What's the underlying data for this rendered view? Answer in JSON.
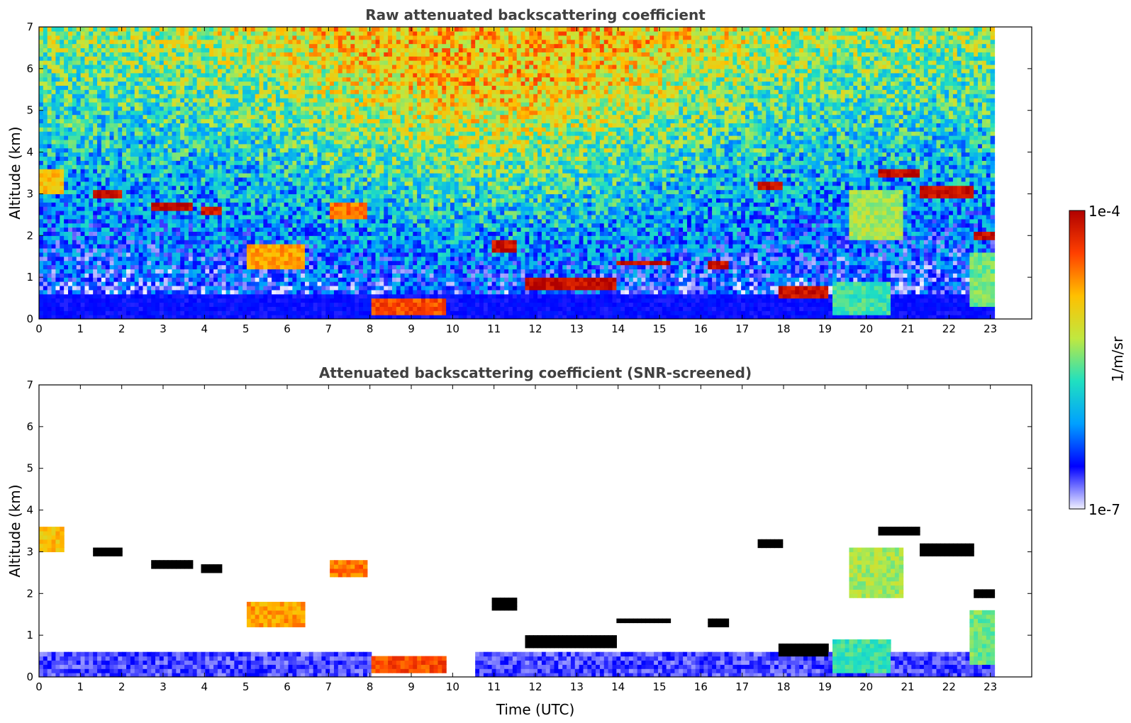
{
  "chart_data": [
    {
      "type": "heatmap",
      "title": "Raw attenuated backscattering coefficient",
      "xlabel": "",
      "ylabel": "Altitude (km)",
      "xlim": [
        0,
        24
      ],
      "ylim": [
        0,
        7
      ],
      "xticks": [
        "0",
        "1",
        "2",
        "3",
        "4",
        "5",
        "6",
        "7",
        "8",
        "9",
        "10",
        "11",
        "12",
        "13",
        "14",
        "15",
        "16",
        "17",
        "18",
        "19",
        "20",
        "21",
        "22",
        "23"
      ],
      "yticks": [
        "0",
        "1",
        "2",
        "3",
        "4",
        "5",
        "6",
        "7"
      ],
      "data_end_time": 23.1,
      "screened": false,
      "features": [
        {
          "t0": 0.0,
          "t1": 0.6,
          "alt": 3.3,
          "thick": 0.6,
          "level": 0.7
        },
        {
          "t0": 1.3,
          "t1": 2.0,
          "alt": 3.0,
          "thick": 0.25,
          "level": 0.95
        },
        {
          "t0": 2.7,
          "t1": 3.7,
          "alt": 2.75,
          "thick": 0.2,
          "level": 0.98
        },
        {
          "t0": 3.9,
          "t1": 4.4,
          "alt": 2.6,
          "thick": 0.25,
          "level": 0.95
        },
        {
          "t0": 5.0,
          "t1": 6.4,
          "alt": 1.5,
          "thick": 0.55,
          "level": 0.75
        },
        {
          "t0": 7.0,
          "t1": 7.9,
          "alt": 2.6,
          "thick": 0.4,
          "level": 0.8
        },
        {
          "t0": 8.0,
          "t1": 9.8,
          "alt": 0.3,
          "thick": 0.45,
          "level": 0.85
        },
        {
          "t0": 10.9,
          "t1": 11.6,
          "alt": 1.8,
          "thick": 0.3,
          "level": 0.95
        },
        {
          "t0": 11.8,
          "t1": 14.0,
          "alt": 0.85,
          "thick": 0.25,
          "level": 0.97
        },
        {
          "t0": 14.0,
          "t1": 15.3,
          "alt": 1.35,
          "thick": 0.2,
          "level": 0.97
        },
        {
          "t0": 16.2,
          "t1": 16.7,
          "alt": 1.3,
          "thick": 0.15,
          "level": 0.95
        },
        {
          "t0": 17.4,
          "t1": 18.0,
          "alt": 3.2,
          "thick": 0.25,
          "level": 0.97
        },
        {
          "t0": 17.9,
          "t1": 19.1,
          "alt": 0.7,
          "thick": 0.3,
          "level": 0.96
        },
        {
          "t0": 19.6,
          "t1": 20.9,
          "alt": 2.5,
          "thick": 1.2,
          "level": 0.55
        },
        {
          "t0": 20.3,
          "t1": 21.3,
          "alt": 3.55,
          "thick": 0.2,
          "level": 0.98
        },
        {
          "t0": 21.3,
          "t1": 22.6,
          "alt": 3.05,
          "thick": 0.25,
          "level": 0.97
        },
        {
          "t0": 22.6,
          "t1": 23.1,
          "alt": 2.0,
          "thick": 0.25,
          "level": 0.97
        },
        {
          "t0": 22.5,
          "t1": 23.1,
          "alt": 1.0,
          "thick": 1.3,
          "level": 0.5
        },
        {
          "t0": 19.2,
          "t1": 20.6,
          "alt": 0.5,
          "thick": 0.8,
          "level": 0.45
        }
      ]
    },
    {
      "type": "heatmap",
      "title": "Attenuated backscattering coefficient (SNR-screened)",
      "xlabel": "Time (UTC)",
      "ylabel": "Altitude (km)",
      "xlim": [
        0,
        24
      ],
      "ylim": [
        0,
        7
      ],
      "xticks": [
        "0",
        "1",
        "2",
        "3",
        "4",
        "5",
        "6",
        "7",
        "8",
        "9",
        "10",
        "11",
        "12",
        "13",
        "14",
        "15",
        "16",
        "17",
        "18",
        "19",
        "20",
        "21",
        "22",
        "23"
      ],
      "yticks": [
        "0",
        "1",
        "2",
        "3",
        "4",
        "5",
        "6",
        "7"
      ],
      "data_end_time": 23.1,
      "screened": true,
      "features": [
        {
          "t0": 0.0,
          "t1": 0.6,
          "alt": 3.3,
          "thick": 0.6,
          "level": 0.7
        },
        {
          "t0": 1.3,
          "t1": 2.0,
          "alt": 3.0,
          "thick": 0.25,
          "level": 1.0
        },
        {
          "t0": 2.7,
          "t1": 3.7,
          "alt": 2.75,
          "thick": 0.2,
          "level": 1.0
        },
        {
          "t0": 3.9,
          "t1": 4.4,
          "alt": 2.6,
          "thick": 0.25,
          "level": 1.0
        },
        {
          "t0": 5.0,
          "t1": 6.4,
          "alt": 1.5,
          "thick": 0.55,
          "level": 0.75
        },
        {
          "t0": 7.0,
          "t1": 7.9,
          "alt": 2.6,
          "thick": 0.4,
          "level": 0.8
        },
        {
          "t0": 8.0,
          "t1": 9.8,
          "alt": 0.3,
          "thick": 0.45,
          "level": 0.85
        },
        {
          "t0": 10.9,
          "t1": 11.6,
          "alt": 1.8,
          "thick": 0.3,
          "level": 1.0
        },
        {
          "t0": 11.8,
          "t1": 14.0,
          "alt": 0.85,
          "thick": 0.25,
          "level": 1.0
        },
        {
          "t0": 14.0,
          "t1": 15.3,
          "alt": 1.35,
          "thick": 0.2,
          "level": 1.0
        },
        {
          "t0": 16.2,
          "t1": 16.7,
          "alt": 1.3,
          "thick": 0.15,
          "level": 1.0
        },
        {
          "t0": 17.4,
          "t1": 18.0,
          "alt": 3.2,
          "thick": 0.25,
          "level": 1.0
        },
        {
          "t0": 17.9,
          "t1": 19.1,
          "alt": 0.7,
          "thick": 0.3,
          "level": 1.0
        },
        {
          "t0": 19.6,
          "t1": 20.9,
          "alt": 2.5,
          "thick": 1.2,
          "level": 0.55
        },
        {
          "t0": 20.3,
          "t1": 21.3,
          "alt": 3.55,
          "thick": 0.2,
          "level": 1.0
        },
        {
          "t0": 21.3,
          "t1": 22.6,
          "alt": 3.05,
          "thick": 0.25,
          "level": 1.0
        },
        {
          "t0": 22.6,
          "t1": 23.1,
          "alt": 2.0,
          "thick": 0.25,
          "level": 1.0
        },
        {
          "t0": 22.5,
          "t1": 23.1,
          "alt": 1.0,
          "thick": 1.3,
          "level": 0.5
        },
        {
          "t0": 19.2,
          "t1": 20.6,
          "alt": 0.5,
          "thick": 0.8,
          "level": 0.45
        }
      ]
    }
  ],
  "colorbar": {
    "label": "1/m/sr",
    "min_label": "1e-7",
    "max_label": "1e-4",
    "colormap": "jet",
    "colors": [
      "#f0f0ff",
      "#0000ff",
      "#00a0ff",
      "#20e0c0",
      "#c0e840",
      "#ffc000",
      "#ff4000",
      "#b00000"
    ]
  }
}
